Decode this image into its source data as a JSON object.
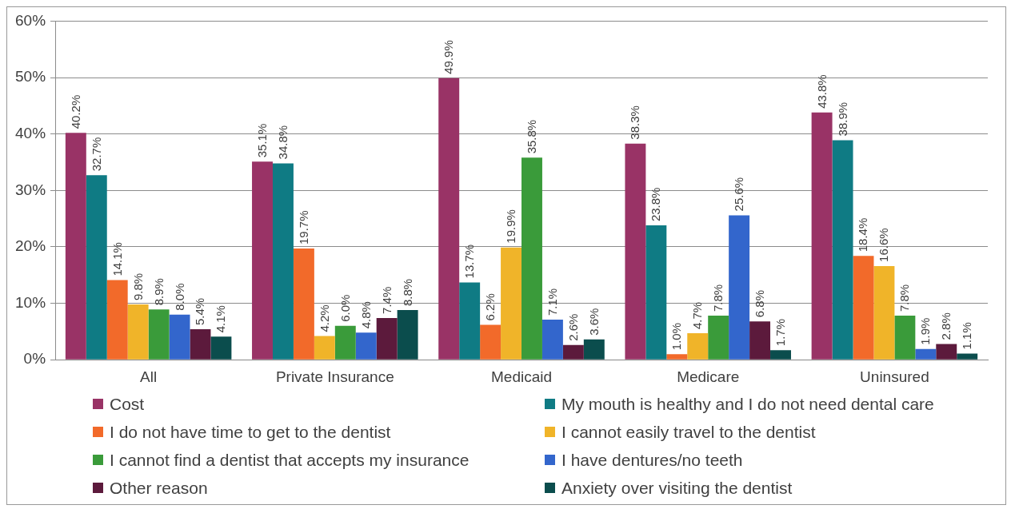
{
  "chart_data": {
    "type": "bar",
    "categories": [
      "All",
      "Private Insurance",
      "Medicaid",
      "Medicare",
      "Uninsured"
    ],
    "series": [
      {
        "name": "Cost",
        "color": "#993366",
        "values": [
          40.2,
          35.1,
          49.9,
          38.3,
          43.8
        ],
        "value_labels": [
          "40.2%",
          "35.1%",
          "49.9%",
          "38.3%",
          "43.8%"
        ]
      },
      {
        "name": "My mouth is healthy and I do not need dental care",
        "color": "#0f7b84",
        "values": [
          32.7,
          34.8,
          13.7,
          23.8,
          38.9
        ],
        "value_labels": [
          "32.7%",
          "34.8%",
          "13.7%",
          "23.8%",
          "38.9%"
        ]
      },
      {
        "name": "I do not have time to get to the dentist",
        "color": "#f26a2a",
        "values": [
          14.1,
          19.7,
          6.2,
          1.0,
          18.4
        ],
        "value_labels": [
          "14.1%",
          "19.7%",
          "6.2%",
          "1.0%",
          "18.4%"
        ]
      },
      {
        "name": "I cannot easily travel to the dentist",
        "color": "#f0b429",
        "values": [
          9.8,
          4.2,
          19.9,
          4.7,
          16.6
        ],
        "value_labels": [
          "9.8%",
          "4.2%",
          "19.9%",
          "4.7%",
          "16.6%"
        ]
      },
      {
        "name": "I cannot find a dentist that accepts my insurance",
        "color": "#3a9b3a",
        "values": [
          8.9,
          6.0,
          35.8,
          7.8,
          7.8
        ],
        "value_labels": [
          "8.9%",
          "6.0%",
          "35.8%",
          "7.8%",
          "7.8%"
        ]
      },
      {
        "name": "I have dentures/no teeth",
        "color": "#3366cc",
        "values": [
          8.0,
          4.8,
          7.1,
          25.6,
          1.9
        ],
        "value_labels": [
          "8.0%",
          "4.8%",
          "7.1%",
          "25.6%",
          "1.9%"
        ]
      },
      {
        "name": "Other reason",
        "color": "#5c1a3c",
        "values": [
          5.4,
          7.4,
          2.6,
          6.8,
          2.8
        ],
        "value_labels": [
          "5.4%",
          "7.4%",
          "2.6%",
          "6.8%",
          "2.8%"
        ]
      },
      {
        "name": "Anxiety over visiting the dentist",
        "color": "#0b4d4d",
        "values": [
          4.1,
          8.8,
          3.6,
          1.7,
          1.1
        ],
        "value_labels": [
          "4.1%",
          "8.8%",
          "3.6%",
          "1.7%",
          "1.1%"
        ]
      }
    ],
    "ylim": [
      0,
      60
    ],
    "yticks": [
      {
        "value": 0,
        "label": "0%"
      },
      {
        "value": 10,
        "label": "10%"
      },
      {
        "value": 20,
        "label": "20%"
      },
      {
        "value": 30,
        "label": "30%"
      },
      {
        "value": 40,
        "label": "40%"
      },
      {
        "value": 50,
        "label": "50%"
      },
      {
        "value": 60,
        "label": "60%"
      }
    ],
    "grid": "y",
    "legend": "bottom"
  }
}
